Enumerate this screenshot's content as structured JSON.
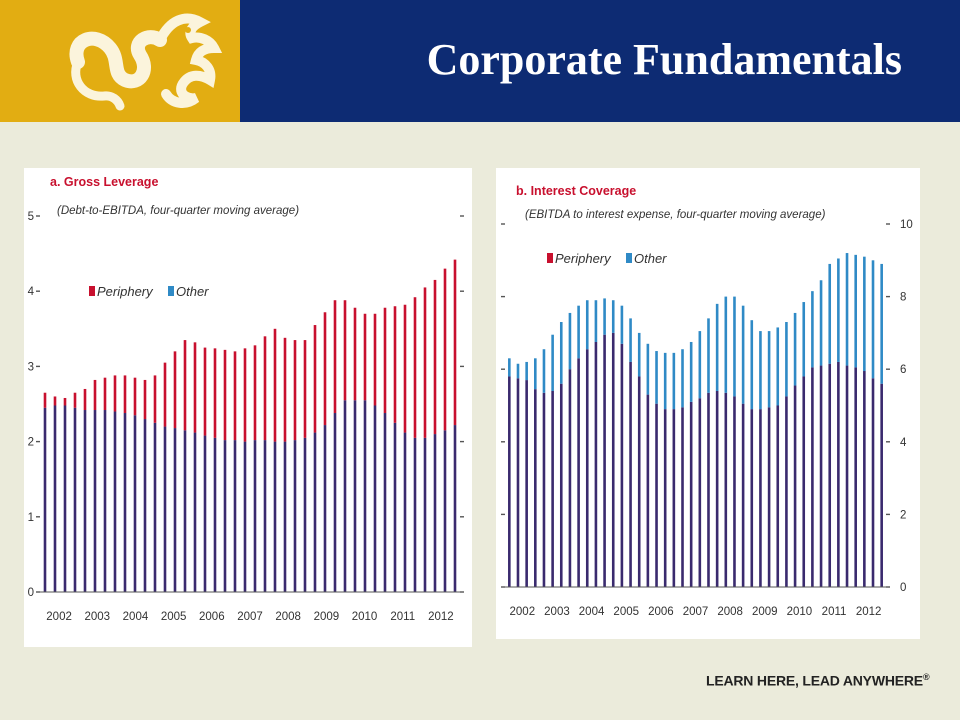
{
  "slide": {
    "title": "Corporate Fundamentals",
    "tagline": "LEARN HERE, LEAD ANYWHERE",
    "tagline_mark": "®"
  },
  "logo": {
    "icon": "dragon-logo-icon",
    "color": "#fbf4dc"
  },
  "colors": {
    "header_bg": "#0d2b73",
    "logo_bg": "#e2ad12",
    "slide_bg": "#ebebdb",
    "periphery": "#c8102e",
    "other": "#2f8ac6",
    "overlap": "#3a2a6e"
  },
  "chart_data": [
    {
      "type": "bar",
      "title": "a. Gross Leverage",
      "subtitle": "(Debt-to-EBITDA, four-quarter moving average)",
      "legend": [
        "Periphery",
        "Other"
      ],
      "legend_position": "inside-top-left",
      "ylim": [
        0,
        5
      ],
      "yticks": [
        0,
        1,
        2,
        3,
        4,
        5
      ],
      "ytick_labels": [
        "0",
        "1",
        "2",
        "3",
        "4",
        "5"
      ],
      "xtick_labels": [
        "2002",
        "2003",
        "2004",
        "2005",
        "2006",
        "2007",
        "2008",
        "2009",
        "2010",
        "2011",
        "2012"
      ],
      "x_start": 2002,
      "x_end": 2013,
      "grid": false,
      "series": [
        {
          "name": "Periphery",
          "values": [
            2.65,
            2.6,
            2.58,
            2.65,
            2.7,
            2.82,
            2.85,
            2.88,
            2.88,
            2.85,
            2.82,
            2.88,
            3.05,
            3.2,
            3.35,
            3.32,
            3.25,
            3.24,
            3.22,
            3.2,
            3.24,
            3.28,
            3.4,
            3.5,
            3.38,
            3.35,
            3.35,
            3.55,
            3.72,
            3.88,
            3.88,
            3.78,
            3.7,
            3.7,
            3.78,
            3.8,
            3.82,
            3.92,
            4.05,
            4.15,
            4.3,
            4.42
          ]
        },
        {
          "name": "Other",
          "values": [
            2.45,
            2.48,
            2.48,
            2.45,
            2.42,
            2.42,
            2.42,
            2.4,
            2.38,
            2.35,
            2.3,
            2.25,
            2.2,
            2.18,
            2.15,
            2.12,
            2.08,
            2.05,
            2.02,
            2.02,
            2.0,
            2.02,
            2.02,
            2.0,
            2.0,
            2.02,
            2.05,
            2.12,
            2.22,
            2.38,
            2.55,
            2.55,
            2.55,
            2.48,
            2.38,
            2.25,
            2.12,
            2.05,
            2.05,
            2.1,
            2.15,
            2.22
          ]
        }
      ]
    },
    {
      "type": "bar",
      "title": "b. Interest Coverage",
      "subtitle": "(EBITDA to interest expense, four-quarter moving average)",
      "legend": [
        "Periphery",
        "Other"
      ],
      "legend_position": "inside-top-left",
      "ylim": [
        0,
        10
      ],
      "yticks": [
        0,
        2,
        4,
        6,
        8,
        10
      ],
      "ytick_labels": [
        "0",
        "2",
        "4",
        "6",
        "8",
        "10"
      ],
      "xtick_labels": [
        "2002",
        "2003",
        "2004",
        "2005",
        "2006",
        "2007",
        "2008",
        "2009",
        "2010",
        "2011",
        "2012"
      ],
      "x_start": 2002,
      "x_end": 2013,
      "grid": false,
      "series": [
        {
          "name": "Periphery",
          "values": [
            5.8,
            5.75,
            5.7,
            5.45,
            5.35,
            5.4,
            5.6,
            6.0,
            6.3,
            6.55,
            6.75,
            6.95,
            7.0,
            6.7,
            6.2,
            5.8,
            5.3,
            5.05,
            4.9,
            4.9,
            4.95,
            5.1,
            5.2,
            5.35,
            5.4,
            5.35,
            5.25,
            5.05,
            4.9,
            4.9,
            4.95,
            5.0,
            5.25,
            5.55,
            5.8,
            6.05,
            6.1,
            6.15,
            6.2,
            6.1,
            6.05,
            5.95,
            5.75,
            5.6
          ]
        },
        {
          "name": "Other",
          "values": [
            6.3,
            6.15,
            6.2,
            6.3,
            6.55,
            6.95,
            7.3,
            7.55,
            7.75,
            7.9,
            7.9,
            7.95,
            7.9,
            7.75,
            7.4,
            7.0,
            6.7,
            6.5,
            6.45,
            6.45,
            6.55,
            6.75,
            7.05,
            7.4,
            7.8,
            8.0,
            8.0,
            7.75,
            7.35,
            7.05,
            7.05,
            7.15,
            7.3,
            7.55,
            7.85,
            8.15,
            8.45,
            8.9,
            9.05,
            9.2,
            9.15,
            9.1,
            9.0,
            8.9
          ]
        }
      ]
    }
  ]
}
